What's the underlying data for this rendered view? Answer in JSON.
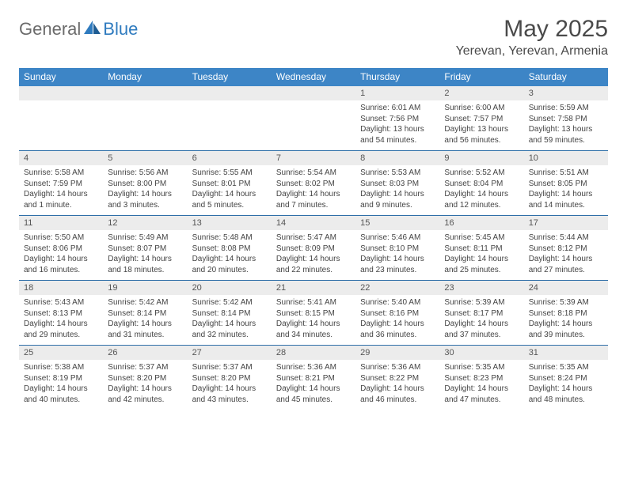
{
  "brand": {
    "part1": "General",
    "part2": "Blue"
  },
  "title": "May 2025",
  "location": "Yerevan, Yerevan, Armenia",
  "colors": {
    "header_bg": "#3d85c6",
    "header_text": "#ffffff",
    "daynum_bg": "#ececec",
    "row_border": "#2f6fa8",
    "body_text": "#444444",
    "title_text": "#4a4a4a",
    "logo_gray": "#6b6b6b",
    "logo_blue": "#2f7bbf"
  },
  "weekdays": [
    "Sunday",
    "Monday",
    "Tuesday",
    "Wednesday",
    "Thursday",
    "Friday",
    "Saturday"
  ],
  "weeks": [
    {
      "nums": [
        "",
        "",
        "",
        "",
        "1",
        "2",
        "3"
      ],
      "cells": [
        null,
        null,
        null,
        null,
        {
          "sunrise": "Sunrise: 6:01 AM",
          "sunset": "Sunset: 7:56 PM",
          "day1": "Daylight: 13 hours",
          "day2": "and 54 minutes."
        },
        {
          "sunrise": "Sunrise: 6:00 AM",
          "sunset": "Sunset: 7:57 PM",
          "day1": "Daylight: 13 hours",
          "day2": "and 56 minutes."
        },
        {
          "sunrise": "Sunrise: 5:59 AM",
          "sunset": "Sunset: 7:58 PM",
          "day1": "Daylight: 13 hours",
          "day2": "and 59 minutes."
        }
      ]
    },
    {
      "nums": [
        "4",
        "5",
        "6",
        "7",
        "8",
        "9",
        "10"
      ],
      "cells": [
        {
          "sunrise": "Sunrise: 5:58 AM",
          "sunset": "Sunset: 7:59 PM",
          "day1": "Daylight: 14 hours",
          "day2": "and 1 minute."
        },
        {
          "sunrise": "Sunrise: 5:56 AM",
          "sunset": "Sunset: 8:00 PM",
          "day1": "Daylight: 14 hours",
          "day2": "and 3 minutes."
        },
        {
          "sunrise": "Sunrise: 5:55 AM",
          "sunset": "Sunset: 8:01 PM",
          "day1": "Daylight: 14 hours",
          "day2": "and 5 minutes."
        },
        {
          "sunrise": "Sunrise: 5:54 AM",
          "sunset": "Sunset: 8:02 PM",
          "day1": "Daylight: 14 hours",
          "day2": "and 7 minutes."
        },
        {
          "sunrise": "Sunrise: 5:53 AM",
          "sunset": "Sunset: 8:03 PM",
          "day1": "Daylight: 14 hours",
          "day2": "and 9 minutes."
        },
        {
          "sunrise": "Sunrise: 5:52 AM",
          "sunset": "Sunset: 8:04 PM",
          "day1": "Daylight: 14 hours",
          "day2": "and 12 minutes."
        },
        {
          "sunrise": "Sunrise: 5:51 AM",
          "sunset": "Sunset: 8:05 PM",
          "day1": "Daylight: 14 hours",
          "day2": "and 14 minutes."
        }
      ]
    },
    {
      "nums": [
        "11",
        "12",
        "13",
        "14",
        "15",
        "16",
        "17"
      ],
      "cells": [
        {
          "sunrise": "Sunrise: 5:50 AM",
          "sunset": "Sunset: 8:06 PM",
          "day1": "Daylight: 14 hours",
          "day2": "and 16 minutes."
        },
        {
          "sunrise": "Sunrise: 5:49 AM",
          "sunset": "Sunset: 8:07 PM",
          "day1": "Daylight: 14 hours",
          "day2": "and 18 minutes."
        },
        {
          "sunrise": "Sunrise: 5:48 AM",
          "sunset": "Sunset: 8:08 PM",
          "day1": "Daylight: 14 hours",
          "day2": "and 20 minutes."
        },
        {
          "sunrise": "Sunrise: 5:47 AM",
          "sunset": "Sunset: 8:09 PM",
          "day1": "Daylight: 14 hours",
          "day2": "and 22 minutes."
        },
        {
          "sunrise": "Sunrise: 5:46 AM",
          "sunset": "Sunset: 8:10 PM",
          "day1": "Daylight: 14 hours",
          "day2": "and 23 minutes."
        },
        {
          "sunrise": "Sunrise: 5:45 AM",
          "sunset": "Sunset: 8:11 PM",
          "day1": "Daylight: 14 hours",
          "day2": "and 25 minutes."
        },
        {
          "sunrise": "Sunrise: 5:44 AM",
          "sunset": "Sunset: 8:12 PM",
          "day1": "Daylight: 14 hours",
          "day2": "and 27 minutes."
        }
      ]
    },
    {
      "nums": [
        "18",
        "19",
        "20",
        "21",
        "22",
        "23",
        "24"
      ],
      "cells": [
        {
          "sunrise": "Sunrise: 5:43 AM",
          "sunset": "Sunset: 8:13 PM",
          "day1": "Daylight: 14 hours",
          "day2": "and 29 minutes."
        },
        {
          "sunrise": "Sunrise: 5:42 AM",
          "sunset": "Sunset: 8:14 PM",
          "day1": "Daylight: 14 hours",
          "day2": "and 31 minutes."
        },
        {
          "sunrise": "Sunrise: 5:42 AM",
          "sunset": "Sunset: 8:14 PM",
          "day1": "Daylight: 14 hours",
          "day2": "and 32 minutes."
        },
        {
          "sunrise": "Sunrise: 5:41 AM",
          "sunset": "Sunset: 8:15 PM",
          "day1": "Daylight: 14 hours",
          "day2": "and 34 minutes."
        },
        {
          "sunrise": "Sunrise: 5:40 AM",
          "sunset": "Sunset: 8:16 PM",
          "day1": "Daylight: 14 hours",
          "day2": "and 36 minutes."
        },
        {
          "sunrise": "Sunrise: 5:39 AM",
          "sunset": "Sunset: 8:17 PM",
          "day1": "Daylight: 14 hours",
          "day2": "and 37 minutes."
        },
        {
          "sunrise": "Sunrise: 5:39 AM",
          "sunset": "Sunset: 8:18 PM",
          "day1": "Daylight: 14 hours",
          "day2": "and 39 minutes."
        }
      ]
    },
    {
      "nums": [
        "25",
        "26",
        "27",
        "28",
        "29",
        "30",
        "31"
      ],
      "cells": [
        {
          "sunrise": "Sunrise: 5:38 AM",
          "sunset": "Sunset: 8:19 PM",
          "day1": "Daylight: 14 hours",
          "day2": "and 40 minutes."
        },
        {
          "sunrise": "Sunrise: 5:37 AM",
          "sunset": "Sunset: 8:20 PM",
          "day1": "Daylight: 14 hours",
          "day2": "and 42 minutes."
        },
        {
          "sunrise": "Sunrise: 5:37 AM",
          "sunset": "Sunset: 8:20 PM",
          "day1": "Daylight: 14 hours",
          "day2": "and 43 minutes."
        },
        {
          "sunrise": "Sunrise: 5:36 AM",
          "sunset": "Sunset: 8:21 PM",
          "day1": "Daylight: 14 hours",
          "day2": "and 45 minutes."
        },
        {
          "sunrise": "Sunrise: 5:36 AM",
          "sunset": "Sunset: 8:22 PM",
          "day1": "Daylight: 14 hours",
          "day2": "and 46 minutes."
        },
        {
          "sunrise": "Sunrise: 5:35 AM",
          "sunset": "Sunset: 8:23 PM",
          "day1": "Daylight: 14 hours",
          "day2": "and 47 minutes."
        },
        {
          "sunrise": "Sunrise: 5:35 AM",
          "sunset": "Sunset: 8:24 PM",
          "day1": "Daylight: 14 hours",
          "day2": "and 48 minutes."
        }
      ]
    }
  ]
}
